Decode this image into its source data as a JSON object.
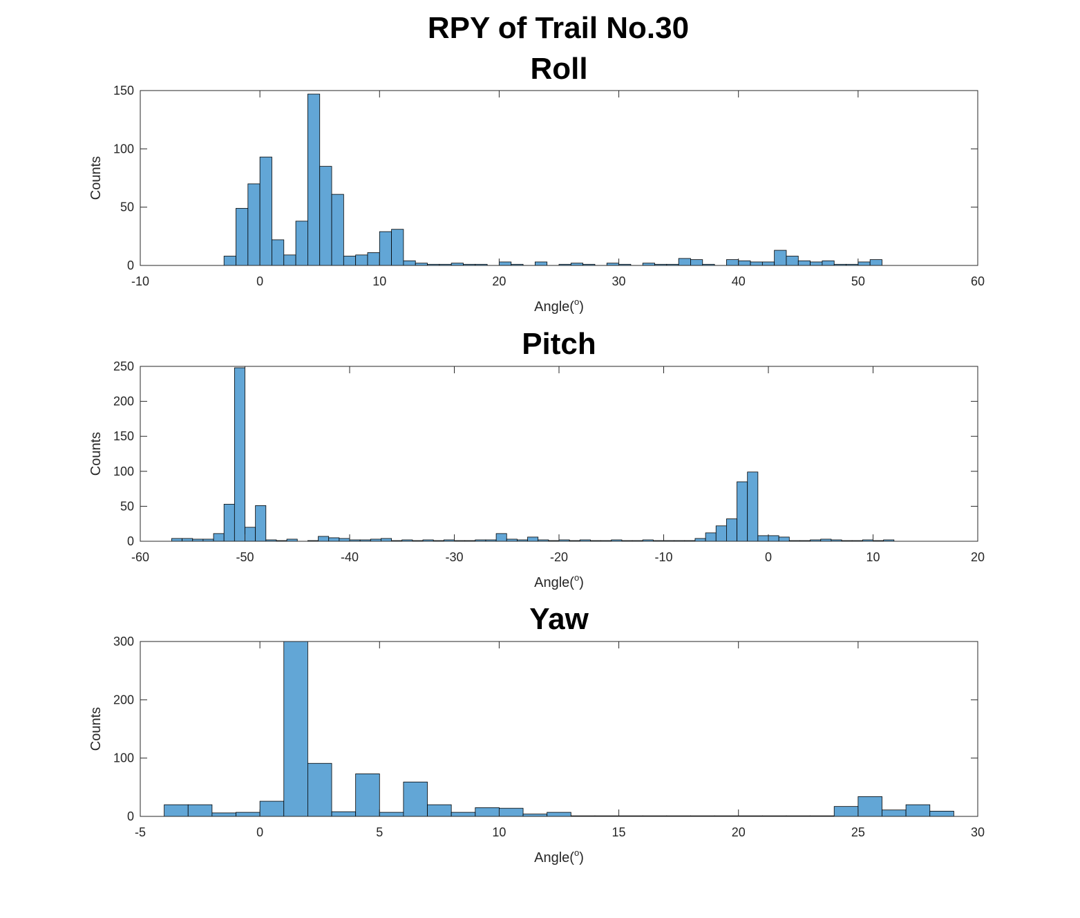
{
  "figure": {
    "title": "RPY of Trail No.30"
  },
  "colors": {
    "bar_fill": "#62a6d6",
    "bar_edge": "#000000",
    "axes": "#262626",
    "background": "#ffffff"
  },
  "chart_data": [
    {
      "type": "bar",
      "title": "Roll",
      "xlabel": "Angle(o)",
      "xlabel_main": "Angle(",
      "xlabel_sup": "o",
      "xlabel_end": ")",
      "ylabel": "Counts",
      "xlim": [
        -10,
        60
      ],
      "ylim": [
        0,
        150
      ],
      "xticks": [
        -10,
        0,
        10,
        20,
        30,
        40,
        50,
        60
      ],
      "yticks": [
        0,
        50,
        100,
        150
      ],
      "bin_width": 1,
      "bin_start": -3,
      "values": [
        8,
        49,
        70,
        93,
        22,
        9,
        38,
        147,
        85,
        61,
        8,
        9,
        11,
        29,
        31,
        4,
        2,
        1,
        1,
        2,
        1,
        1,
        0,
        3,
        1,
        0,
        3,
        0,
        1,
        2,
        1,
        0,
        2,
        1,
        0,
        2,
        1,
        1,
        6,
        5,
        1,
        0,
        5,
        4,
        3,
        3,
        13,
        8,
        4,
        3,
        4,
        1,
        1,
        3,
        5
      ]
    },
    {
      "type": "bar",
      "title": "Pitch",
      "xlabel": "Angle(o)",
      "xlabel_main": "Angle(",
      "xlabel_sup": "o",
      "xlabel_end": ")",
      "ylabel": "Counts",
      "xlim": [
        -60,
        20
      ],
      "ylim": [
        0,
        250
      ],
      "xticks": [
        -60,
        -50,
        -40,
        -30,
        -20,
        -10,
        0,
        10,
        20
      ],
      "yticks": [
        0,
        50,
        100,
        150,
        200,
        250
      ],
      "bin_width": 1,
      "bin_start": -57,
      "values": [
        4,
        4,
        3,
        3,
        11,
        53,
        248,
        20,
        51,
        2,
        1,
        3,
        0,
        1,
        7,
        5,
        4,
        2,
        2,
        3,
        4,
        1,
        2,
        1,
        2,
        1,
        2,
        1,
        1,
        2,
        2,
        11,
        3,
        2,
        6,
        2,
        1,
        2,
        1,
        2,
        1,
        1,
        2,
        1,
        1,
        2,
        1,
        1,
        1,
        1,
        4,
        12,
        22,
        32,
        85,
        99,
        8,
        8,
        6,
        1,
        1,
        2,
        3,
        2,
        1,
        1,
        2,
        1,
        2
      ]
    },
    {
      "type": "bar",
      "title": "Yaw",
      "xlabel": "Angle(o)",
      "xlabel_main": "Angle(",
      "xlabel_sup": "o",
      "xlabel_end": ")",
      "ylabel": "Counts",
      "xlim": [
        -5,
        30
      ],
      "ylim": [
        0,
        300
      ],
      "xticks": [
        -5,
        0,
        5,
        10,
        15,
        20,
        25,
        30
      ],
      "yticks": [
        0,
        100,
        200,
        300
      ],
      "bin_width": 1,
      "bin_start": -4,
      "values": [
        20,
        20,
        6,
        7,
        26,
        300,
        91,
        8,
        73,
        7,
        59,
        20,
        7,
        15,
        14,
        4,
        7,
        1,
        1,
        1,
        1,
        1,
        1,
        1,
        1,
        1,
        1,
        1,
        17,
        34,
        11,
        20,
        9
      ]
    }
  ]
}
